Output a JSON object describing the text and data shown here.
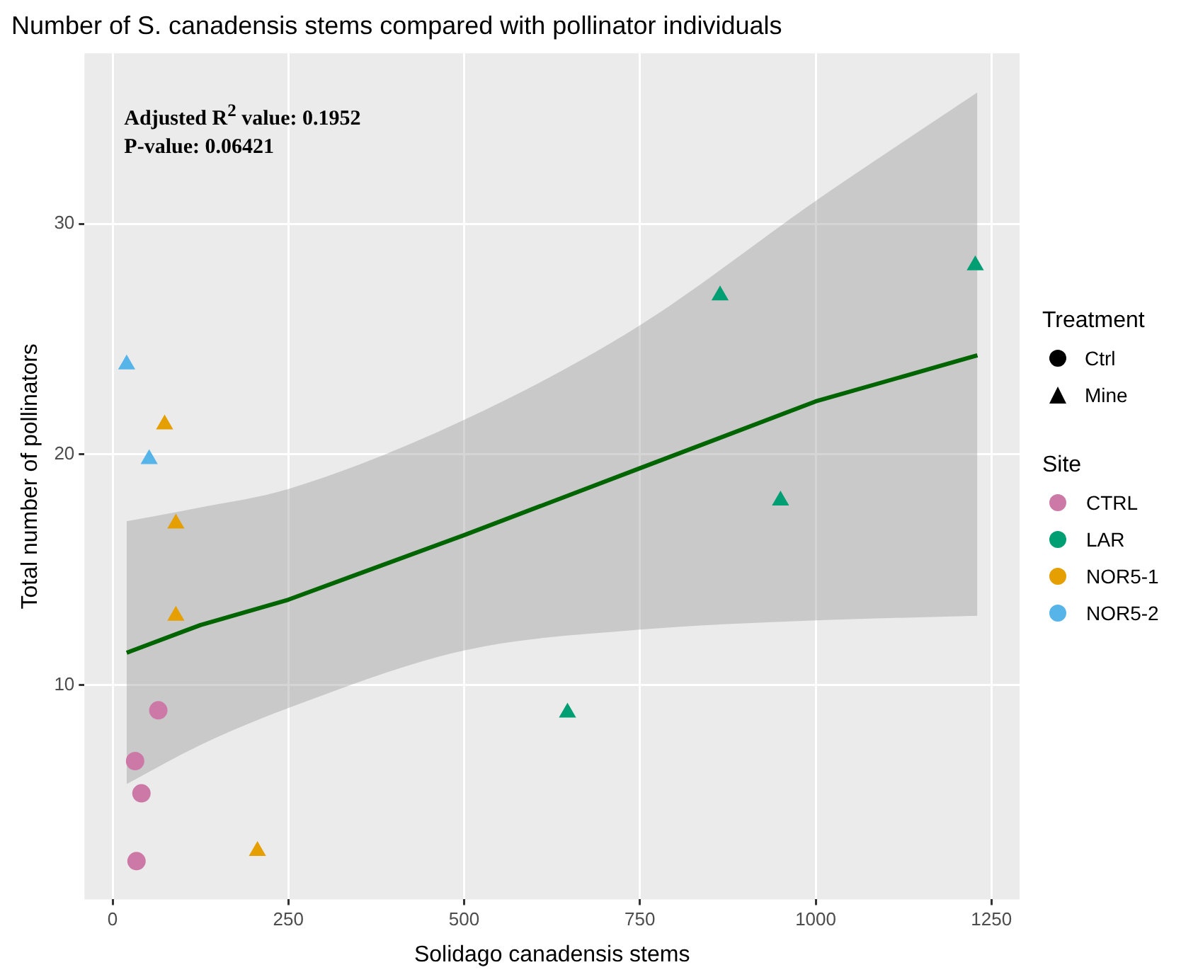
{
  "chart_data": {
    "type": "scatter",
    "title": "Number of S. canadensis stems compared with pollinator individuals",
    "xlabel": "Solidago canadensis stems",
    "ylabel": "Total number of pollinators",
    "legend_title": "Site",
    "legend": "right",
    "grid": true,
    "xlim": [
      -40,
      1290
    ],
    "xticks": [
      0,
      250,
      500,
      750,
      1000,
      1250
    ],
    "ylim": [
      0.7,
      37.4
    ],
    "yticks": [
      10,
      20,
      30
    ],
    "annotations": [
      "Adjusted R$^{2}$ value: 0.1952",
      "P-value: 0.06421",
      "Treatment",
      "Ctrl",
      "Mine"
    ],
    "series": [
      {
        "name": "CTRL",
        "color": "#cc79a7",
        "marker": "circle",
        "x": [
          34,
          32,
          41,
          65
        ],
        "values": [
          2.36,
          6.7,
          5.3,
          8.9
        ]
      },
      {
        "name": "LAR",
        "color": "#009e73",
        "marker": "triangle",
        "x": [
          647,
          864,
          950,
          1227
        ],
        "values": [
          8.8,
          26.9,
          18.0,
          28.2
        ]
      },
      {
        "name": "NOR5-1",
        "color": "#e69f00",
        "marker": "triangle",
        "x": [
          74,
          90,
          90,
          206
        ],
        "values": [
          21.3,
          17.0,
          13.0,
          2.8
        ]
      },
      {
        "name": "NOR5-2",
        "color": "#56b4e9",
        "marker": "triangle",
        "x": [
          20,
          52
        ],
        "values": [
          23.9,
          19.8
        ]
      },
      {
        "type": "line",
        "color": "#006400",
        "marker": "none",
        "x": [
          20,
          125,
          250,
          500,
          750,
          1000,
          1230
        ],
        "values": [
          11.4,
          12.6,
          13.7,
          16.5,
          19.4,
          22.3,
          24.3
        ],
        "lower": [
          5.7,
          7.4,
          9.0,
          11.5,
          12.4,
          12.8,
          13.0
        ],
        "upper": [
          17.1,
          17.7,
          18.5,
          21.5,
          25.6,
          31.0,
          35.7
        ]
      }
    ]
  }
}
